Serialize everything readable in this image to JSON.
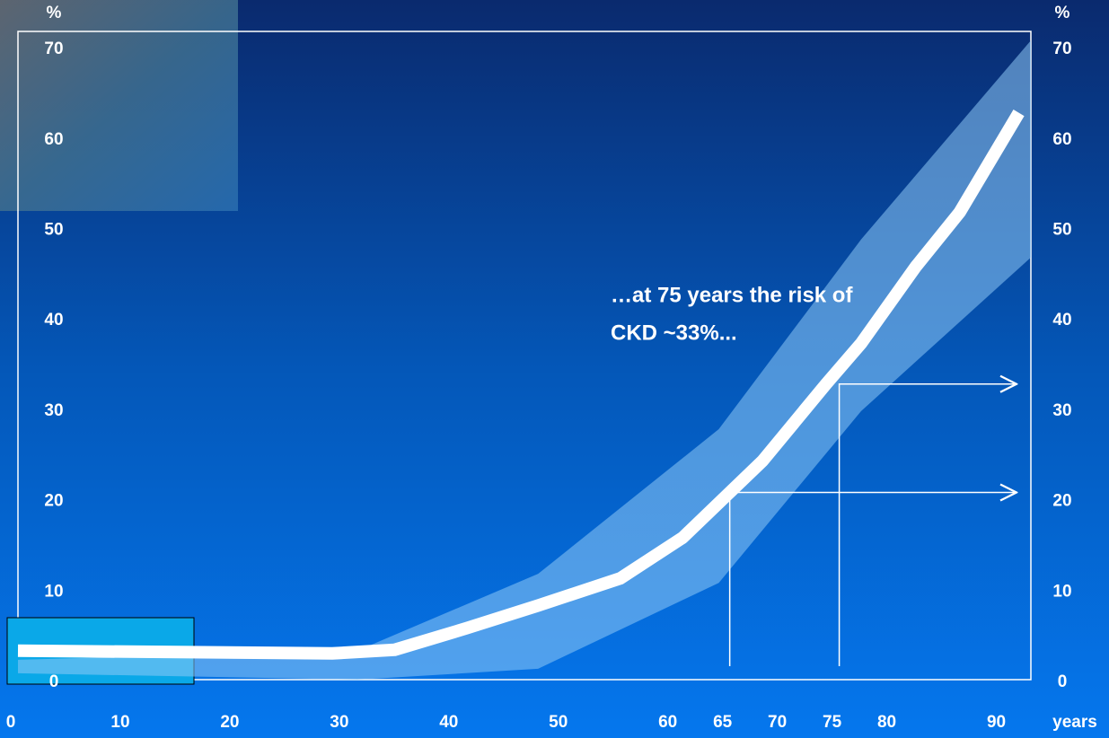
{
  "chart_data": {
    "type": "line",
    "y_label": "%",
    "y2_label": "%",
    "x_label": "years",
    "annotation": [
      "…at 75 years the risk  of",
      "CKD  ~33%..."
    ],
    "x": [
      0,
      28.7,
      34.4,
      41,
      47.5,
      55,
      60.7,
      68,
      73.8,
      77,
      82,
      86,
      91.4
    ],
    "values": [
      3.5,
      3.2,
      3.6,
      6,
      8.5,
      11.5,
      16,
      24.5,
      33,
      37.5,
      46,
      52,
      63
    ],
    "color": "#ffffff",
    "band": {
      "x": [
        0,
        31,
        47.5,
        64,
        77,
        92.5
      ],
      "upper": [
        2.5,
        3.5,
        12,
        28,
        49,
        71
      ],
      "lower": [
        1,
        0.3,
        1.5,
        11,
        30,
        47
      ],
      "color": "#8ec8f5"
    },
    "reference_lines": [
      {
        "x": 65,
        "y": 21
      },
      {
        "x": 75,
        "y": 33
      }
    ],
    "xlim": [
      0,
      92.5
    ],
    "xticks": [
      0,
      10,
      20,
      30,
      40,
      50,
      60,
      65,
      70,
      75,
      80,
      90
    ],
    "ylim": [
      0,
      72
    ],
    "yticks": [
      0,
      10,
      20,
      30,
      40,
      50,
      60,
      70
    ],
    "y2lim": [
      0,
      72
    ],
    "y2ticks": [
      0,
      10,
      20,
      30,
      40,
      50,
      60,
      70
    ]
  }
}
